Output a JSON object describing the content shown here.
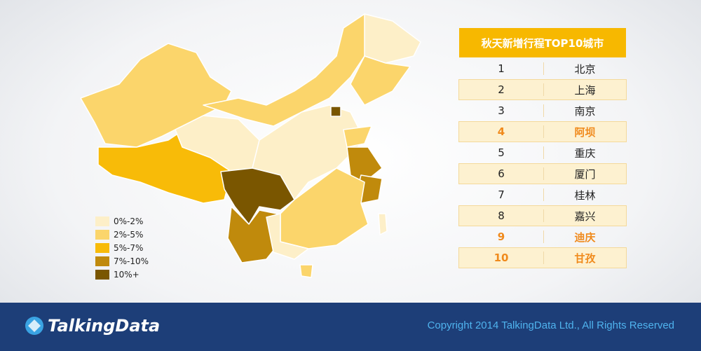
{
  "map": {
    "legend": [
      "0%-2%",
      "2%-5%",
      "5%-7%",
      "7%-10%",
      "10%+"
    ]
  },
  "table": {
    "title": "秋天新增行程TOP10城市",
    "rows": [
      [
        1,
        "北京"
      ],
      [
        2,
        "上海"
      ],
      [
        3,
        "南京"
      ],
      [
        4,
        "阿坝"
      ],
      [
        5,
        "重庆"
      ],
      [
        6,
        "厦门"
      ],
      [
        7,
        "桂林"
      ],
      [
        8,
        "嘉兴"
      ],
      [
        9,
        "迪庆"
      ],
      [
        10,
        "甘孜"
      ]
    ]
  },
  "footer": {
    "logo": "TalkingData",
    "copyright": "Copyright 2014 TalkingData Ltd., All Rights Reserved"
  }
}
